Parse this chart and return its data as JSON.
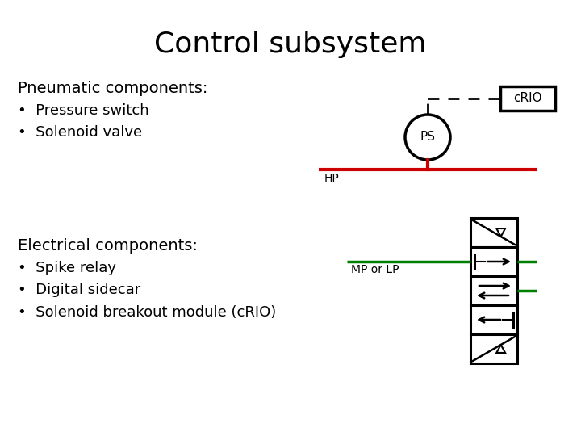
{
  "title": "Control subsystem",
  "title_fontsize": 26,
  "bg_color": "#ffffff",
  "text_color": "#000000",
  "red_color": "#cc0000",
  "green_color": "#008000",
  "pneumatic_header": "Pneumatic components:",
  "pneumatic_bullets": [
    "Pressure switch",
    "Solenoid valve"
  ],
  "electrical_header": "Electrical components:",
  "electrical_bullets": [
    "Spike relay",
    "Digital sidecar",
    "Solenoid breakout module (cRIO)"
  ],
  "PS_label": "PS",
  "HP_label": "HP",
  "cRIO_label": "cRIO",
  "MP_LP_label": "MP or LP",
  "body_fontsize": 13,
  "header_fontsize": 14
}
